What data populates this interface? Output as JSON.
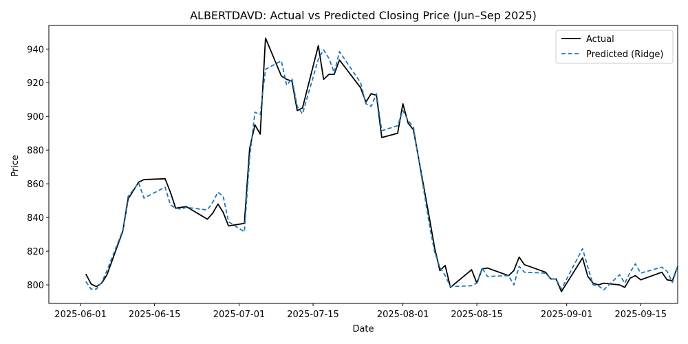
{
  "chart_data": {
    "type": "line",
    "title": "ALBERTDAVD: Actual vs Predicted Closing Price (Jun–Sep 2025)",
    "xlabel": "Date",
    "ylabel": "Price",
    "xlim": [
      "2025-05-26",
      "2025-09-22"
    ],
    "ylim": [
      789,
      954
    ],
    "x_ticks": [
      "2025-06-01",
      "2025-06-15",
      "2025-07-01",
      "2025-07-15",
      "2025-08-01",
      "2025-08-15",
      "2025-09-01",
      "2025-09-15"
    ],
    "y_ticks": [
      800,
      820,
      840,
      860,
      880,
      900,
      920,
      940
    ],
    "grid": false,
    "legend_position": "top-right",
    "series": [
      {
        "name": "Actual",
        "color": "#000000",
        "style": "solid",
        "points": [
          [
            "2025-06-02",
            806.5
          ],
          [
            "2025-06-03",
            800.5
          ],
          [
            "2025-06-04",
            799.0
          ],
          [
            "2025-06-05",
            801.0
          ],
          [
            "2025-06-06",
            806.0
          ],
          [
            "2025-06-09",
            832.0
          ],
          [
            "2025-06-10",
            851.0
          ],
          [
            "2025-06-12",
            861.0
          ],
          [
            "2025-06-13",
            862.5
          ],
          [
            "2025-06-17",
            863.0
          ],
          [
            "2025-06-18",
            855.0
          ],
          [
            "2025-06-19",
            845.5
          ],
          [
            "2025-06-20",
            846.0
          ],
          [
            "2025-06-21",
            846.5
          ],
          [
            "2025-06-25",
            839.0
          ],
          [
            "2025-06-26",
            842.5
          ],
          [
            "2025-06-27",
            848.0
          ],
          [
            "2025-06-28",
            843.0
          ],
          [
            "2025-06-29",
            835.0
          ],
          [
            "2025-07-02",
            836.5
          ],
          [
            "2025-07-03",
            881.0
          ],
          [
            "2025-07-04",
            895.0
          ],
          [
            "2025-07-05",
            889.5
          ],
          [
            "2025-07-06",
            946.5
          ],
          [
            "2025-07-09",
            924.0
          ],
          [
            "2025-07-10",
            922.0
          ],
          [
            "2025-07-11",
            921.0
          ],
          [
            "2025-07-12",
            903.5
          ],
          [
            "2025-07-13",
            905.0
          ],
          [
            "2025-07-16",
            942.0
          ],
          [
            "2025-07-17",
            922.0
          ],
          [
            "2025-07-18",
            925.0
          ],
          [
            "2025-07-19",
            925.0
          ],
          [
            "2025-07-20",
            933.5
          ],
          [
            "2025-07-24",
            917.0
          ],
          [
            "2025-07-25",
            908.5
          ],
          [
            "2025-07-26",
            913.5
          ],
          [
            "2025-07-27",
            912.5
          ],
          [
            "2025-07-28",
            887.5
          ],
          [
            "2025-07-31",
            890.0
          ],
          [
            "2025-08-01",
            907.5
          ],
          [
            "2025-08-02",
            896.0
          ],
          [
            "2025-08-03",
            892.0
          ],
          [
            "2025-08-06",
            840.0
          ],
          [
            "2025-08-07",
            822.0
          ],
          [
            "2025-08-08",
            808.5
          ],
          [
            "2025-08-09",
            811.5
          ],
          [
            "2025-08-10",
            798.5
          ],
          [
            "2025-08-14",
            809.0
          ],
          [
            "2025-08-15",
            801.0
          ],
          [
            "2025-08-16",
            809.5
          ],
          [
            "2025-08-17",
            810.0
          ],
          [
            "2025-08-21",
            805.5
          ],
          [
            "2025-08-22",
            808.5
          ],
          [
            "2025-08-23",
            816.5
          ],
          [
            "2025-08-24",
            812.0
          ],
          [
            "2025-08-28",
            807.5
          ],
          [
            "2025-08-29",
            803.5
          ],
          [
            "2025-08-30",
            803.5
          ],
          [
            "2025-08-31",
            796.0
          ],
          [
            "2025-09-04",
            816.0
          ],
          [
            "2025-09-05",
            805.0
          ],
          [
            "2025-09-06",
            801.0
          ],
          [
            "2025-09-07",
            800.0
          ],
          [
            "2025-09-08",
            801.0
          ],
          [
            "2025-09-11",
            800.0
          ],
          [
            "2025-09-12",
            798.5
          ],
          [
            "2025-09-13",
            804.0
          ],
          [
            "2025-09-14",
            805.5
          ],
          [
            "2025-09-15",
            803.0
          ],
          [
            "2025-09-19",
            807.5
          ],
          [
            "2025-09-20",
            803.0
          ],
          [
            "2025-09-21",
            802.5
          ],
          [
            "2025-09-22",
            811.0
          ]
        ]
      },
      {
        "name": "Predicted (Ridge)",
        "color": "#1f77b4",
        "style": "dashed",
        "points": [
          [
            "2025-06-02",
            802.0
          ],
          [
            "2025-06-03",
            797.5
          ],
          [
            "2025-06-04",
            797.5
          ],
          [
            "2025-06-05",
            801.5
          ],
          [
            "2025-06-06",
            808.5
          ],
          [
            "2025-06-09",
            832.5
          ],
          [
            "2025-06-10",
            852.5
          ],
          [
            "2025-06-12",
            860.5
          ],
          [
            "2025-06-13",
            851.5
          ],
          [
            "2025-06-17",
            858.0
          ],
          [
            "2025-06-18",
            847.5
          ],
          [
            "2025-06-19",
            845.5
          ],
          [
            "2025-06-20",
            845.0
          ],
          [
            "2025-06-21",
            846.0
          ],
          [
            "2025-06-25",
            844.5
          ],
          [
            "2025-06-26",
            849.0
          ],
          [
            "2025-06-27",
            855.0
          ],
          [
            "2025-06-28",
            852.5
          ],
          [
            "2025-06-29",
            837.5
          ],
          [
            "2025-07-02",
            831.5
          ],
          [
            "2025-07-03",
            875.5
          ],
          [
            "2025-07-04",
            902.5
          ],
          [
            "2025-07-05",
            901.0
          ],
          [
            "2025-07-06",
            928.0
          ],
          [
            "2025-07-09",
            933.0
          ],
          [
            "2025-07-10",
            918.5
          ],
          [
            "2025-07-11",
            922.5
          ],
          [
            "2025-07-12",
            906.0
          ],
          [
            "2025-07-13",
            901.5
          ],
          [
            "2025-07-16",
            934.0
          ],
          [
            "2025-07-17",
            939.5
          ],
          [
            "2025-07-18",
            934.5
          ],
          [
            "2025-07-19",
            926.0
          ],
          [
            "2025-07-20",
            938.5
          ],
          [
            "2025-07-24",
            920.0
          ],
          [
            "2025-07-25",
            907.5
          ],
          [
            "2025-07-26",
            906.0
          ],
          [
            "2025-07-27",
            913.5
          ],
          [
            "2025-07-28",
            891.5
          ],
          [
            "2025-07-31",
            894.5
          ],
          [
            "2025-08-01",
            903.5
          ],
          [
            "2025-08-02",
            897.5
          ],
          [
            "2025-08-03",
            893.5
          ],
          [
            "2025-08-06",
            836.0
          ],
          [
            "2025-08-07",
            819.5
          ],
          [
            "2025-08-08",
            810.5
          ],
          [
            "2025-08-09",
            805.5
          ],
          [
            "2025-08-10",
            799.0
          ],
          [
            "2025-08-14",
            799.5
          ],
          [
            "2025-08-15",
            801.0
          ],
          [
            "2025-08-16",
            810.0
          ],
          [
            "2025-08-17",
            805.0
          ],
          [
            "2025-08-21",
            805.5
          ],
          [
            "2025-08-22",
            800.0
          ],
          [
            "2025-08-23",
            811.0
          ],
          [
            "2025-08-24",
            807.5
          ],
          [
            "2025-08-28",
            807.0
          ],
          [
            "2025-08-29",
            803.5
          ],
          [
            "2025-08-30",
            803.5
          ],
          [
            "2025-08-31",
            797.5
          ],
          [
            "2025-09-04",
            821.5
          ],
          [
            "2025-09-05",
            810.5
          ],
          [
            "2025-09-06",
            800.0
          ],
          [
            "2025-09-07",
            799.5
          ],
          [
            "2025-09-08",
            797.0
          ],
          [
            "2025-09-11",
            806.0
          ],
          [
            "2025-09-12",
            801.0
          ],
          [
            "2025-09-13",
            807.5
          ],
          [
            "2025-09-14",
            812.5
          ],
          [
            "2025-09-15",
            807.0
          ],
          [
            "2025-09-19",
            810.5
          ],
          [
            "2025-09-20",
            808.0
          ],
          [
            "2025-09-21",
            801.5
          ],
          [
            "2025-09-22",
            811.0
          ]
        ]
      }
    ]
  }
}
